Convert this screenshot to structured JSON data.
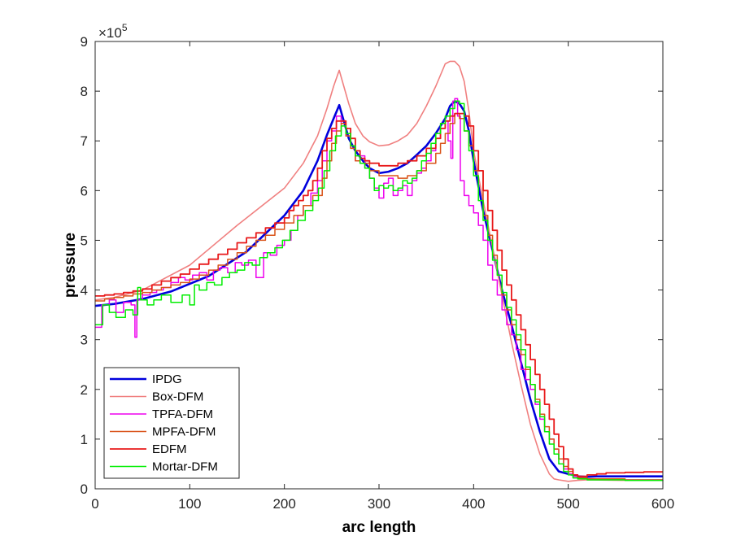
{
  "chart_data": {
    "type": "line",
    "title": "",
    "xlabel": "arc length",
    "ylabel": "pressure",
    "xlim": [
      0,
      600
    ],
    "ylim": [
      0,
      9
    ],
    "xticks": [
      "0",
      "100",
      "200",
      "300",
      "400",
      "500",
      "600"
    ],
    "yticks": [
      "0",
      "1",
      "2",
      "3",
      "4",
      "5",
      "6",
      "7",
      "8",
      "9"
    ],
    "y_multiplier_base": "×10",
    "y_multiplier_exp": "5",
    "grid": false,
    "legend_position": "bottom-left",
    "series": [
      {
        "name": "IPDG",
        "color": "#0000dd",
        "width": 2.6,
        "step": false,
        "x": [
          0,
          20,
          50,
          80,
          120,
          160,
          200,
          220,
          235,
          245,
          252,
          258,
          262,
          268,
          275,
          283,
          290,
          300,
          310,
          320,
          330,
          340,
          350,
          360,
          370,
          375,
          380,
          385,
          390,
          395,
          400,
          410,
          420,
          430,
          440,
          450,
          460,
          470,
          480,
          490,
          500,
          505,
          510,
          520,
          530,
          560,
          600
        ],
        "y": [
          3.68,
          3.72,
          3.82,
          3.97,
          4.28,
          4.77,
          5.5,
          6.0,
          6.6,
          7.12,
          7.45,
          7.72,
          7.45,
          7.05,
          6.8,
          6.6,
          6.45,
          6.35,
          6.38,
          6.45,
          6.55,
          6.72,
          6.9,
          7.15,
          7.45,
          7.7,
          7.8,
          7.75,
          7.6,
          7.2,
          6.6,
          5.6,
          4.8,
          4.0,
          3.3,
          2.55,
          1.8,
          1.15,
          0.6,
          0.35,
          0.3,
          0.28,
          0.25,
          0.24,
          0.25,
          0.25,
          0.25
        ]
      },
      {
        "name": "Box-DFM",
        "color": "#f08080",
        "width": 1.6,
        "step": false,
        "x": [
          0,
          20,
          50,
          100,
          150,
          200,
          220,
          235,
          245,
          252,
          258,
          262,
          268,
          275,
          283,
          290,
          300,
          310,
          320,
          330,
          340,
          350,
          360,
          370,
          375,
          380,
          385,
          390,
          395,
          400,
          410,
          420,
          430,
          440,
          450,
          460,
          470,
          480,
          485,
          490,
          500,
          510,
          520,
          560,
          600
        ],
        "y": [
          3.8,
          3.85,
          4.0,
          4.5,
          5.3,
          6.05,
          6.55,
          7.1,
          7.65,
          8.1,
          8.42,
          8.15,
          7.75,
          7.35,
          7.1,
          6.98,
          6.9,
          6.92,
          7.0,
          7.12,
          7.35,
          7.7,
          8.1,
          8.55,
          8.6,
          8.6,
          8.5,
          8.2,
          7.6,
          6.8,
          5.8,
          4.85,
          3.9,
          2.95,
          2.1,
          1.3,
          0.7,
          0.3,
          0.2,
          0.18,
          0.15,
          0.17,
          0.18,
          0.17,
          0.17
        ]
      },
      {
        "name": "TPFA-DFM",
        "color": "#ee00ee",
        "width": 1.5,
        "step": true,
        "x": [
          0,
          7,
          15,
          22,
          30,
          38,
          42,
          44,
          50,
          58,
          65,
          72,
          80,
          88,
          95,
          103,
          110,
          118,
          125,
          132,
          140,
          148,
          155,
          162,
          170,
          178,
          185,
          192,
          200,
          207,
          214,
          220,
          228,
          235,
          240,
          245,
          250,
          255,
          260,
          265,
          270,
          275,
          280,
          285,
          290,
          295,
          300,
          305,
          310,
          315,
          320,
          325,
          330,
          335,
          340,
          345,
          350,
          355,
          360,
          365,
          370,
          373,
          376,
          378,
          380,
          383,
          386,
          390,
          395,
          400,
          405,
          410,
          415,
          420,
          425,
          430,
          435,
          440,
          445,
          450,
          455,
          460,
          465,
          470,
          475,
          480,
          485,
          490,
          495,
          500,
          505,
          510,
          520,
          560,
          600
        ],
        "y": [
          3.25,
          3.7,
          3.8,
          3.55,
          3.75,
          3.7,
          3.05,
          3.8,
          3.9,
          3.95,
          4.0,
          4.05,
          4.15,
          4.25,
          4.2,
          4.3,
          4.35,
          4.2,
          4.4,
          4.45,
          4.35,
          4.55,
          4.5,
          4.6,
          4.25,
          4.75,
          4.7,
          4.9,
          5.0,
          5.2,
          5.5,
          5.7,
          5.95,
          6.2,
          6.6,
          7.0,
          7.2,
          7.5,
          7.35,
          7.1,
          6.85,
          6.6,
          6.7,
          6.45,
          6.25,
          6.05,
          5.85,
          6.15,
          6.25,
          5.9,
          6.0,
          6.1,
          5.9,
          6.2,
          6.35,
          6.45,
          6.6,
          6.8,
          7.05,
          7.25,
          7.4,
          7.0,
          6.65,
          7.8,
          7.85,
          7.5,
          6.2,
          5.9,
          5.7,
          5.55,
          5.3,
          5.0,
          4.5,
          4.2,
          3.9,
          3.6,
          3.3,
          3.1,
          2.8,
          2.4,
          2.2,
          2.0,
          1.7,
          1.4,
          1.15,
          1.0,
          0.8,
          0.6,
          0.4,
          0.3,
          0.25,
          0.22,
          0.2,
          0.18,
          0.18
        ]
      },
      {
        "name": "MPFA-DFM",
        "color": "#d95319",
        "width": 1.5,
        "step": true,
        "x": [
          0,
          10,
          20,
          30,
          40,
          50,
          60,
          70,
          80,
          90,
          100,
          110,
          120,
          130,
          140,
          150,
          160,
          170,
          180,
          190,
          200,
          210,
          220,
          230,
          240,
          245,
          250,
          255,
          260,
          265,
          270,
          275,
          280,
          290,
          300,
          310,
          320,
          330,
          340,
          350,
          360,
          365,
          370,
          375,
          380,
          385,
          390,
          395,
          400,
          410,
          415,
          420,
          425,
          430,
          435,
          440,
          445,
          450,
          455,
          460,
          465,
          470,
          475,
          480,
          485,
          490,
          495,
          500,
          505,
          510,
          520,
          560,
          600
        ],
        "y": [
          3.78,
          3.82,
          3.85,
          3.88,
          3.92,
          3.95,
          4.0,
          4.05,
          4.1,
          4.15,
          4.22,
          4.3,
          4.4,
          4.5,
          4.62,
          4.75,
          4.88,
          5.0,
          5.1,
          5.22,
          5.35,
          5.5,
          5.7,
          5.9,
          6.25,
          6.6,
          6.95,
          7.2,
          7.35,
          7.1,
          6.85,
          6.6,
          6.55,
          6.4,
          6.3,
          6.3,
          6.25,
          6.3,
          6.4,
          6.55,
          6.75,
          6.95,
          7.15,
          7.35,
          7.55,
          7.45,
          7.2,
          6.9,
          6.4,
          5.5,
          5.1,
          4.7,
          4.3,
          3.9,
          3.6,
          3.3,
          3.0,
          2.7,
          2.4,
          2.1,
          1.8,
          1.5,
          1.25,
          1.0,
          0.8,
          0.6,
          0.45,
          0.35,
          0.28,
          0.22,
          0.2,
          0.18,
          0.18
        ]
      },
      {
        "name": "EDFM",
        "color": "#e8191a",
        "width": 1.8,
        "step": true,
        "x": [
          0,
          10,
          20,
          30,
          40,
          50,
          60,
          70,
          80,
          90,
          100,
          110,
          120,
          130,
          140,
          150,
          160,
          170,
          180,
          190,
          200,
          205,
          210,
          215,
          220,
          225,
          230,
          235,
          240,
          245,
          250,
          255,
          260,
          265,
          270,
          275,
          280,
          285,
          290,
          300,
          310,
          320,
          330,
          340,
          350,
          360,
          365,
          370,
          375,
          380,
          385,
          390,
          395,
          400,
          405,
          410,
          415,
          420,
          425,
          430,
          435,
          440,
          445,
          450,
          455,
          460,
          465,
          470,
          475,
          480,
          485,
          490,
          495,
          500,
          505,
          510,
          520,
          530,
          540,
          560,
          580,
          600
        ],
        "y": [
          3.88,
          3.9,
          3.92,
          3.95,
          3.98,
          4.02,
          4.1,
          4.18,
          4.25,
          4.32,
          4.42,
          4.52,
          4.62,
          4.72,
          4.82,
          4.95,
          5.05,
          5.15,
          5.25,
          5.35,
          5.45,
          5.6,
          5.7,
          5.8,
          5.9,
          6.0,
          6.2,
          6.45,
          6.8,
          7.05,
          7.25,
          7.4,
          7.4,
          7.25,
          7.05,
          6.8,
          6.65,
          6.6,
          6.55,
          6.5,
          6.5,
          6.55,
          6.6,
          6.7,
          6.85,
          7.05,
          7.25,
          7.4,
          7.5,
          7.55,
          7.55,
          7.5,
          7.3,
          6.8,
          6.4,
          6.0,
          5.6,
          5.2,
          4.8,
          4.4,
          4.1,
          3.8,
          3.5,
          3.2,
          2.9,
          2.6,
          2.3,
          2.0,
          1.7,
          1.4,
          1.1,
          0.85,
          0.6,
          0.4,
          0.28,
          0.25,
          0.28,
          0.3,
          0.32,
          0.33,
          0.34,
          0.34
        ]
      },
      {
        "name": "Mortar-DFM",
        "color": "#00ee00",
        "width": 1.5,
        "step": true,
        "x": [
          0,
          8,
          15,
          22,
          32,
          40,
          45,
          48,
          55,
          62,
          70,
          80,
          92,
          100,
          105,
          110,
          118,
          126,
          134,
          142,
          150,
          158,
          166,
          174,
          182,
          190,
          198,
          206,
          214,
          222,
          230,
          236,
          242,
          248,
          254,
          260,
          265,
          270,
          275,
          280,
          285,
          290,
          295,
          300,
          305,
          310,
          315,
          320,
          325,
          330,
          335,
          340,
          345,
          350,
          355,
          360,
          365,
          370,
          375,
          380,
          385,
          390,
          395,
          400,
          405,
          410,
          415,
          420,
          425,
          430,
          435,
          440,
          445,
          450,
          455,
          460,
          465,
          470,
          475,
          480,
          485,
          490,
          495,
          500,
          505,
          510,
          520,
          560,
          600
        ],
        "y": [
          3.3,
          3.7,
          3.55,
          3.45,
          3.6,
          3.5,
          4.05,
          3.8,
          3.7,
          3.8,
          3.9,
          3.75,
          3.9,
          3.7,
          4.1,
          4.0,
          4.15,
          4.1,
          4.25,
          4.35,
          4.4,
          4.55,
          4.5,
          4.65,
          4.75,
          4.85,
          5.0,
          5.2,
          5.4,
          5.6,
          5.8,
          6.05,
          6.4,
          6.8,
          7.1,
          7.3,
          7.15,
          6.9,
          6.7,
          6.55,
          6.45,
          6.25,
          6.0,
          6.1,
          6.05,
          6.1,
          6.0,
          6.05,
          6.2,
          6.15,
          6.25,
          6.4,
          6.6,
          6.75,
          6.95,
          7.15,
          7.35,
          7.5,
          7.65,
          7.8,
          7.75,
          7.2,
          6.8,
          6.3,
          5.8,
          5.4,
          5.0,
          4.6,
          4.3,
          3.95,
          3.65,
          3.4,
          3.1,
          2.8,
          2.45,
          2.1,
          1.75,
          1.45,
          1.15,
          0.9,
          0.7,
          0.5,
          0.35,
          0.28,
          0.22,
          0.2,
          0.18,
          0.17,
          0.16
        ]
      }
    ]
  }
}
